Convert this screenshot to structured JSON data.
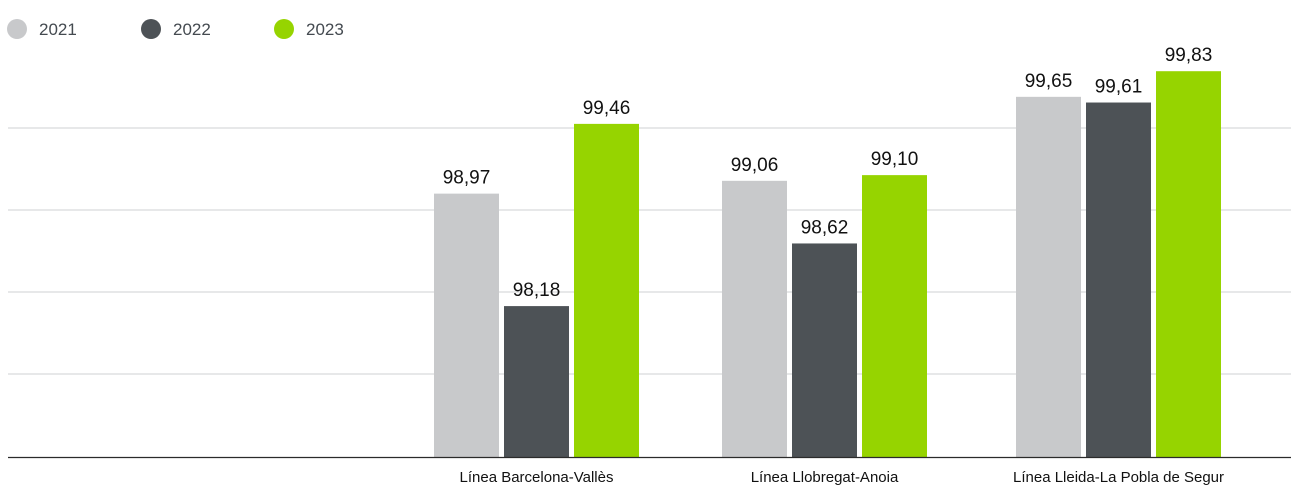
{
  "chart_data": {
    "type": "bar",
    "categories": [
      "Línea Barcelona-Vallès",
      "Línea Llobregat-Anoia",
      "Línea Lleida-La Pobla de Segur"
    ],
    "series": [
      {
        "name": "2021",
        "color": "#c8c9cb",
        "values": [
          98.97,
          99.06,
          99.65
        ],
        "labels": [
          "98,97",
          "99,06",
          "99,65"
        ]
      },
      {
        "name": "2022",
        "color": "#4d5256",
        "values": [
          98.18,
          98.62,
          99.61
        ],
        "labels": [
          "98,18",
          "98,62",
          "99,61"
        ]
      },
      {
        "name": "2023",
        "color": "#96d400",
        "values": [
          99.46,
          99.1,
          99.83
        ],
        "labels": [
          "99,46",
          "99,10",
          "99,83"
        ]
      }
    ],
    "ylim": [
      97.12,
      100.0
    ],
    "grid": true,
    "legend_position": "top-left",
    "title": "",
    "xlabel": "",
    "ylabel": ""
  }
}
